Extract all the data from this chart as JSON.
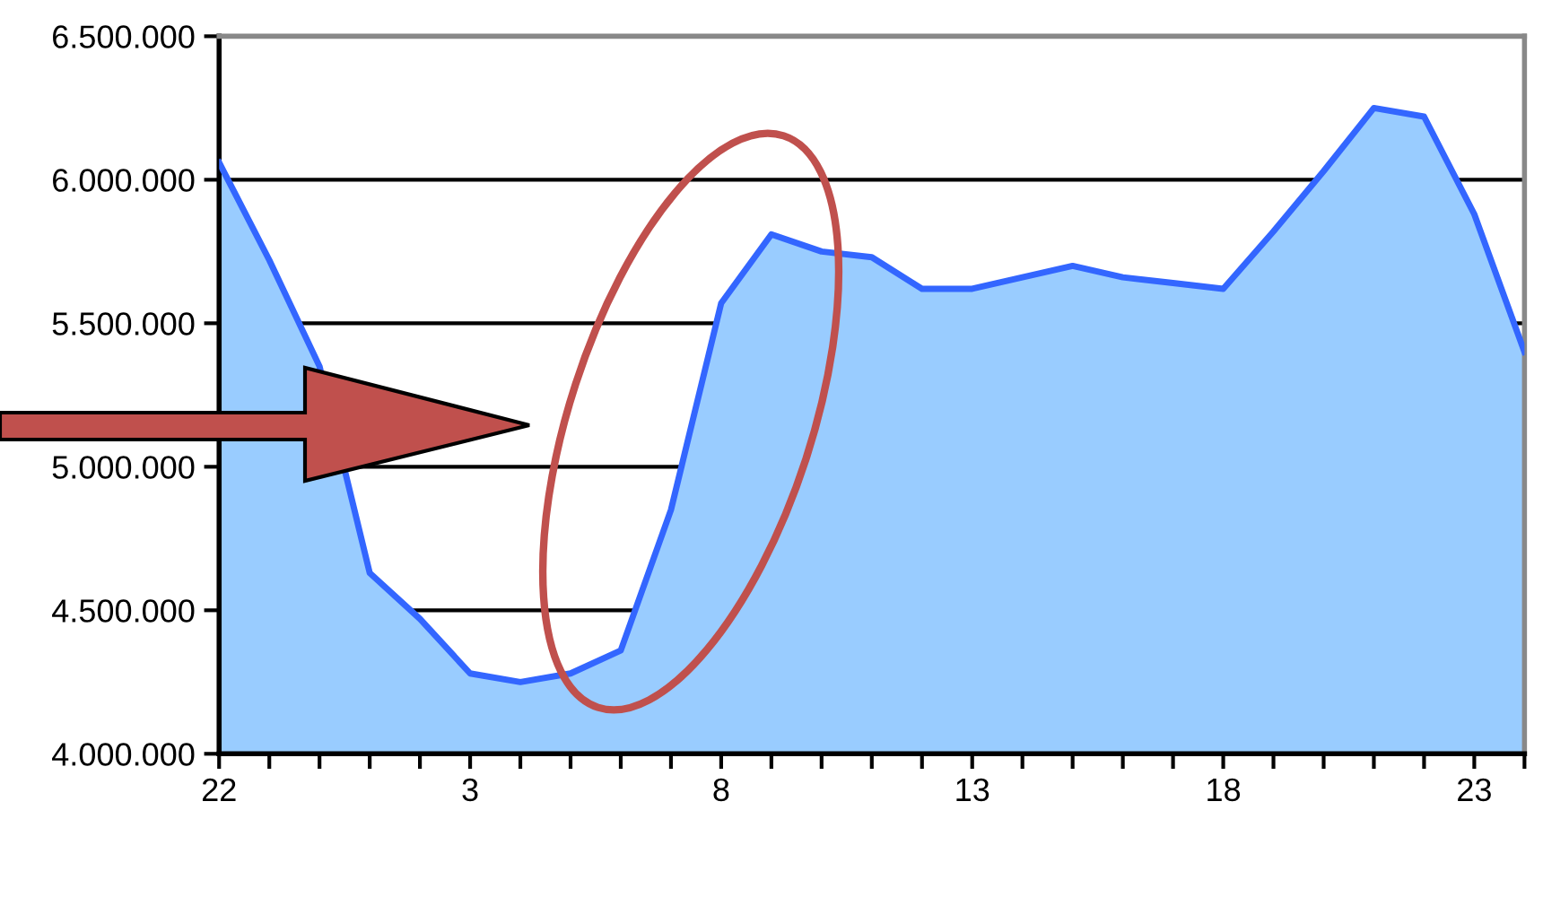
{
  "chart_data": {
    "type": "area",
    "categories": [
      "22",
      null,
      null,
      null,
      null,
      "3",
      null,
      null,
      null,
      null,
      "8",
      null,
      null,
      null,
      null,
      "13",
      null,
      null,
      null,
      null,
      "18",
      null,
      null,
      null,
      null,
      "23",
      null
    ],
    "series": [
      {
        "color": "#3366ff",
        "values": [
          6060000,
          5720000,
          5350000,
          4630000,
          4470000,
          4280000,
          4250000,
          4280000,
          4360000,
          4850000,
          5570000,
          5810000,
          5750000,
          5730000,
          5620000,
          5620000,
          5660000,
          5700000,
          5660000,
          5640000,
          5620000,
          5820000,
          6030000,
          6250000,
          6220000,
          5880000,
          5400000
        ]
      }
    ],
    "ylim": [
      4000000,
      6500000
    ],
    "yticks": [
      {
        "value": 4000000,
        "label": "4.000.000"
      },
      {
        "value": 4500000,
        "label": "4.500.000"
      },
      {
        "value": 5000000,
        "label": "5.000.000"
      },
      {
        "value": 5500000,
        "label": "5.500.000"
      },
      {
        "value": 6000000,
        "label": "6.000.000"
      },
      {
        "value": 6500000,
        "label": "6.500.000"
      }
    ],
    "grid": "y",
    "legend": false
  }
}
